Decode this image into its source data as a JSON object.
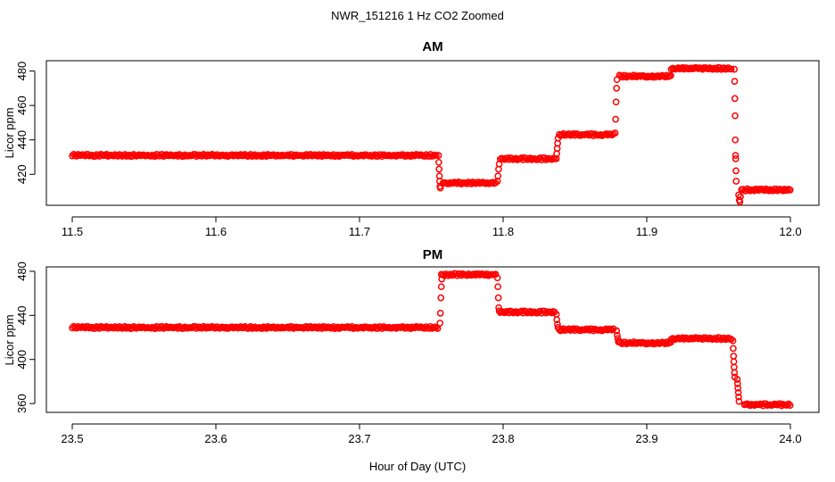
{
  "figure": {
    "title": "NWR_151216  1 Hz CO2 Zoomed",
    "xlabel": "Hour of Day (UTC)"
  },
  "colors": {
    "points": "#ff0000",
    "axis": "#000000",
    "background": "#ffffff"
  },
  "chart_data": [
    {
      "type": "scatter",
      "title": "AM",
      "ylabel": "Licor ppm",
      "xlim": [
        11.5,
        12.0
      ],
      "ylim": [
        402,
        486
      ],
      "xticks": [
        "11.5",
        "11.6",
        "11.7",
        "11.8",
        "11.9",
        "12.0"
      ],
      "yticks": [
        "420",
        "440",
        "460",
        "480"
      ],
      "series": [
        {
          "name": "CO2",
          "segments": [
            {
              "x0": 11.5,
              "x1": 11.754,
              "y": 431
            },
            {
              "x0": 11.758,
              "x1": 11.795,
              "y": 415
            },
            {
              "x0": 11.798,
              "x1": 11.836,
              "y": 429
            },
            {
              "x0": 11.839,
              "x1": 11.877,
              "y": 443
            },
            {
              "x0": 11.881,
              "x1": 11.917,
              "y": 477
            },
            {
              "x0": 11.917,
              "x1": 11.959,
              "y": 481.5
            },
            {
              "x0": 11.966,
              "x1": 12.0,
              "y": 411
            }
          ],
          "transitions": [
            {
              "x": 11.755,
              "y": [
                431,
                427,
                423,
                419,
                416,
                413,
                412
              ]
            },
            {
              "x": 11.796,
              "y": [
                416,
                419,
                423,
                426
              ]
            },
            {
              "x": 11.837,
              "y": [
                429,
                432,
                435,
                438,
                441
              ]
            },
            {
              "x": 11.878,
              "y": [
                444,
                452,
                462,
                470,
                475
              ]
            },
            {
              "x": 11.961,
              "y": [
                481,
                474,
                464,
                454,
                440,
                431,
                429,
                422,
                416
              ]
            },
            {
              "x": 11.964,
              "y": [
                408,
                405,
                404,
                407
              ]
            }
          ]
        }
      ]
    },
    {
      "type": "scatter",
      "title": "PM",
      "ylabel": "Licor ppm",
      "xlim": [
        23.5,
        24.0
      ],
      "ylim": [
        352,
        484
      ],
      "xticks": [
        "23.5",
        "23.6",
        "23.7",
        "23.8",
        "23.9",
        "24.0"
      ],
      "yticks": [
        "360",
        "400",
        "440",
        "480"
      ],
      "series": [
        {
          "name": "CO2",
          "segments": [
            {
              "x0": 23.5,
              "x1": 23.755,
              "y": 429
            },
            {
              "x0": 23.757,
              "x1": 23.795,
              "y": 477
            },
            {
              "x0": 23.798,
              "x1": 23.836,
              "y": 443
            },
            {
              "x0": 23.839,
              "x1": 23.877,
              "y": 427
            },
            {
              "x0": 23.881,
              "x1": 23.917,
              "y": 415
            },
            {
              "x0": 23.917,
              "x1": 23.959,
              "y": 419
            },
            {
              "x0": 23.968,
              "x1": 24.0,
              "y": 359
            }
          ],
          "transitions": [
            {
              "x": 23.756,
              "y": [
                433,
                442,
                456,
                466,
                473
              ]
            },
            {
              "x": 23.796,
              "y": [
                474,
                466,
                456,
                447,
                444
              ]
            },
            {
              "x": 23.837,
              "y": [
                441,
                436,
                432,
                429
              ]
            },
            {
              "x": 23.879,
              "y": [
                426,
                422,
                419,
                416
              ]
            },
            {
              "x": 23.96,
              "y": [
                417,
                410,
                403,
                398,
                393,
                388,
                384
              ]
            },
            {
              "x": 23.963,
              "y": [
                382,
                378,
                374,
                370,
                366,
                362
              ]
            }
          ]
        }
      ]
    }
  ]
}
